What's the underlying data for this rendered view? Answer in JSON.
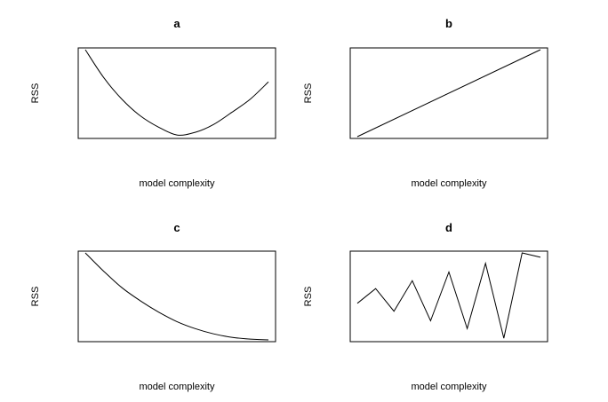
{
  "figure": {
    "background": "#ffffff",
    "line_color": "#000000"
  },
  "chart_data": [
    {
      "type": "line",
      "title": "a",
      "xlabel": "model complexity",
      "ylabel": "RSS",
      "x": [
        0,
        1,
        2,
        3,
        4,
        5,
        6,
        7,
        8,
        9,
        10
      ],
      "values": [
        1.0,
        0.68,
        0.43,
        0.24,
        0.11,
        0.02,
        0.05,
        0.14,
        0.28,
        0.43,
        0.63
      ],
      "ylim": [
        -0.02,
        1.02
      ],
      "grid": false,
      "axes_ticks": false
    },
    {
      "type": "line",
      "title": "b",
      "xlabel": "model complexity",
      "ylabel": "RSS",
      "x": [
        0,
        10
      ],
      "values": [
        0.0,
        1.0
      ],
      "ylim": [
        -0.02,
        1.02
      ],
      "grid": false,
      "axes_ticks": false
    },
    {
      "type": "line",
      "title": "c",
      "xlabel": "model complexity",
      "ylabel": "RSS",
      "x": [
        0,
        1,
        2,
        3,
        4,
        5,
        6,
        7,
        8,
        9,
        10
      ],
      "values": [
        1.0,
        0.79,
        0.6,
        0.45,
        0.32,
        0.21,
        0.13,
        0.07,
        0.03,
        0.01,
        0.0
      ],
      "ylim": [
        -0.02,
        1.02
      ],
      "grid": false,
      "axes_ticks": false
    },
    {
      "type": "line",
      "title": "d",
      "xlabel": "model complexity",
      "ylabel": "RSS",
      "x": [
        0,
        1,
        2,
        3,
        4,
        5,
        6,
        7,
        8,
        9,
        10
      ],
      "values": [
        0.42,
        0.59,
        0.33,
        0.68,
        0.22,
        0.78,
        0.13,
        0.88,
        0.02,
        1.0,
        0.95
      ],
      "ylim": [
        -0.02,
        1.02
      ],
      "grid": false,
      "axes_ticks": false
    }
  ]
}
